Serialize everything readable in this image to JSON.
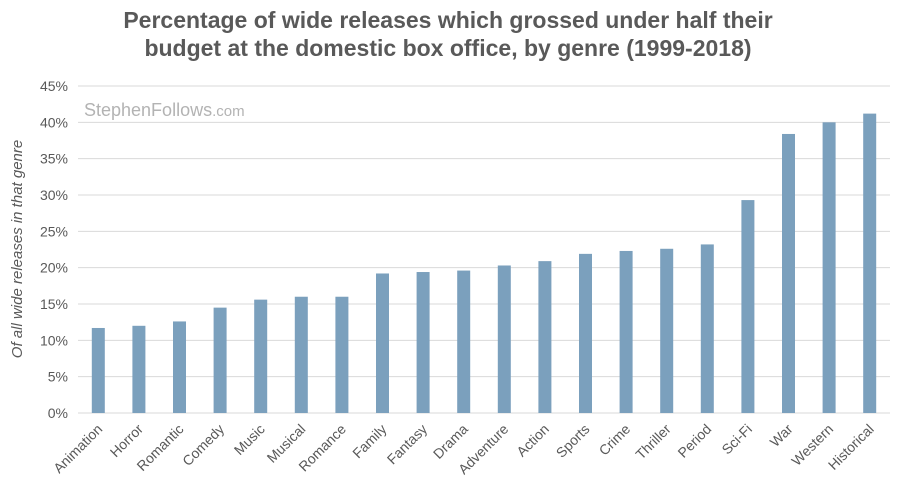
{
  "chart_data": {
    "type": "bar",
    "title_lines": [
      "Percentage of wide releases which grossed under half their",
      "budget at the domestic box office, by genre (1999-2018)"
    ],
    "xlabel": "",
    "ylabel": "Of all wide releases in that genre",
    "watermark": {
      "main": "StephenFollows",
      "suffix": ".com"
    },
    "ylim": [
      0,
      45
    ],
    "yticks": [
      "0%",
      "5%",
      "10%",
      "15%",
      "20%",
      "25%",
      "30%",
      "35%",
      "40%",
      "45%"
    ],
    "grid": true,
    "bar_color": "#7ba0bd",
    "categories": [
      "Animation",
      "Horror",
      "Romantic",
      "Comedy",
      "Music",
      "Musical",
      "Romance",
      "Family",
      "Fantasy",
      "Drama",
      "Adventure",
      "Action",
      "Sports",
      "Crime",
      "Thriller",
      "Period",
      "Sci-Fi",
      "War",
      "Western",
      "Historical"
    ],
    "values": [
      11.7,
      12.0,
      12.6,
      14.5,
      15.6,
      16.0,
      16.0,
      19.2,
      19.4,
      19.6,
      20.3,
      20.9,
      21.9,
      22.3,
      22.6,
      23.2,
      29.3,
      38.4,
      40.0,
      41.2
    ]
  }
}
